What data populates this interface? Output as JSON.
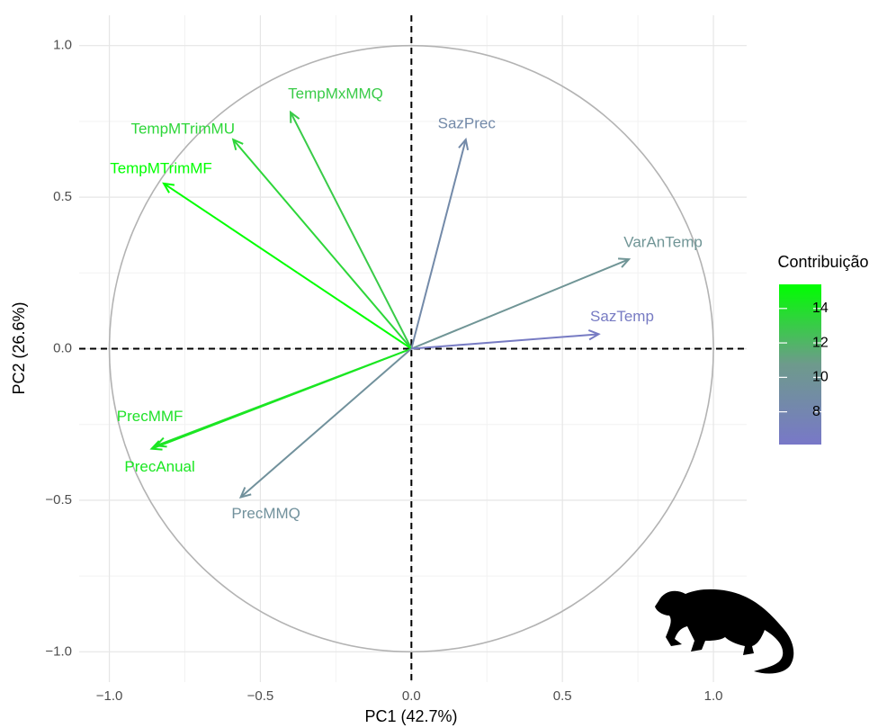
{
  "chart_data": {
    "type": "pca-variables",
    "x_label": "PC1 (42.7%)",
    "y_label": "PC2 (26.6%)",
    "xlim": [
      -1.1,
      1.11
    ],
    "ylim": [
      -1.1,
      1.1
    ],
    "xticks": [
      -1.0,
      -0.5,
      0.0,
      0.5,
      1.0
    ],
    "yticks": [
      {
        "value": 1,
        "label": "1.0"
      },
      {
        "value": 0.5,
        "label": "0.5"
      },
      {
        "value": 0,
        "label": "0.0"
      },
      {
        "value": -0.5,
        "label": "−0.5"
      },
      {
        "value": -1,
        "label": "−1.0"
      }
    ],
    "xticks_labels": [
      "−1.0",
      "−0.5",
      "0.0",
      "0.5",
      "1.0"
    ],
    "minor_grid": [
      -0.75,
      -0.25,
      0.25,
      0.75
    ],
    "grid": true,
    "variables": [
      {
        "name": "TempMxMMQ",
        "x": -0.4,
        "y": 0.78,
        "contribution": 13.0
      },
      {
        "name": "TempMTrimMU",
        "x": -0.59,
        "y": 0.69,
        "contribution": 13.5
      },
      {
        "name": "TempMTrimMF",
        "x": -0.82,
        "y": 0.545,
        "contribution": 15.4
      },
      {
        "name": "SazPrec",
        "x": 0.18,
        "y": 0.69,
        "contribution": 8.5
      },
      {
        "name": "VarAnTemp",
        "x": 0.72,
        "y": 0.295,
        "contribution": 10.0
      },
      {
        "name": "SazTemp",
        "x": 0.62,
        "y": 0.048,
        "contribution": 6.5
      },
      {
        "name": "PrecMMF",
        "x": -0.845,
        "y": -0.32,
        "contribution": 14.0
      },
      {
        "name": "PrecAnual",
        "x": -0.86,
        "y": -0.33,
        "contribution": 14.3
      },
      {
        "name": "PrecMMQ",
        "x": -0.565,
        "y": -0.49,
        "contribution": 9.5
      }
    ],
    "legend": {
      "title": "Contribuição",
      "clim": [
        6.1,
        15.4
      ],
      "ticks": [
        8,
        10,
        12,
        14
      ],
      "colorscale": [
        "#7878c8",
        "#6e9a8c",
        "#00ff00"
      ]
    }
  }
}
